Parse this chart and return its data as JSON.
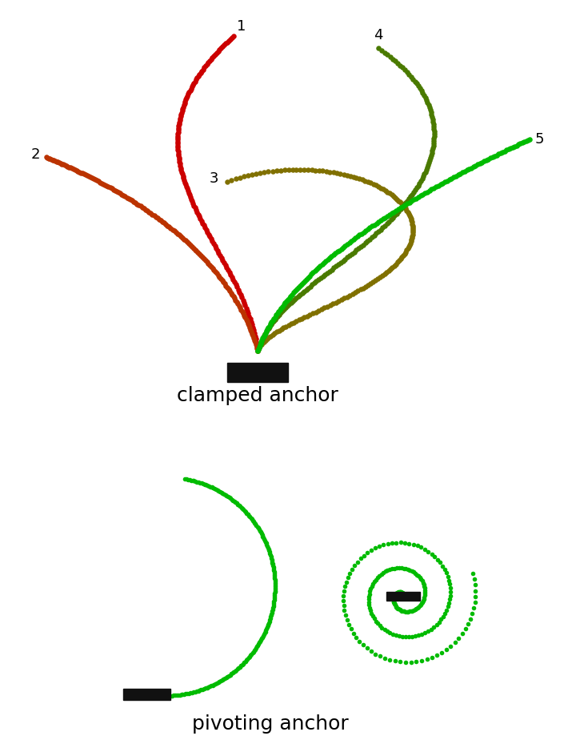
{
  "background": "#ffffff",
  "upper_title": "clamped anchor",
  "lower_title": "pivoting anchor",
  "title_fontsize": 18,
  "label_fontsize": 13,
  "bead_size": 22,
  "bead_size_lower": 16,
  "anchor_color": "#111111",
  "colors": {
    "1": "#cc0000",
    "2": "#bb3300",
    "3": "#807000",
    "4": "#4a7a00",
    "5": "#00bb00"
  }
}
